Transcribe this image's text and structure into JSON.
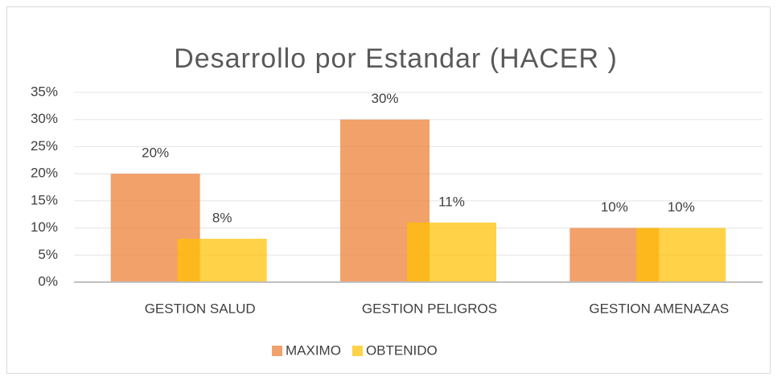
{
  "chart_data": {
    "type": "bar",
    "title": "Desarrollo por Estandar  (HACER )",
    "categories": [
      "GESTION SALUD",
      "GESTION PELIGROS",
      "GESTION AMENAZAS"
    ],
    "series": [
      {
        "name": "MAXIMO",
        "color": "#ed7d31",
        "values": [
          20,
          30,
          10
        ],
        "value_labels": [
          "20%",
          "30%",
          "10%"
        ]
      },
      {
        "name": "OBTENIDO",
        "color": "#ffc000",
        "values": [
          8,
          11,
          10
        ],
        "value_labels": [
          "8%",
          "11%",
          "10%"
        ]
      }
    ],
    "ylim": [
      0,
      35
    ],
    "yticks": [
      {
        "value": 0,
        "label": "0%"
      },
      {
        "value": 5,
        "label": "5%"
      },
      {
        "value": 10,
        "label": "10%"
      },
      {
        "value": 15,
        "label": "15%"
      },
      {
        "value": 20,
        "label": "20%"
      },
      {
        "value": 25,
        "label": "25%"
      },
      {
        "value": 30,
        "label": "30%"
      },
      {
        "value": 35,
        "label": "35%"
      }
    ],
    "grid": true,
    "legend": "bottom"
  }
}
